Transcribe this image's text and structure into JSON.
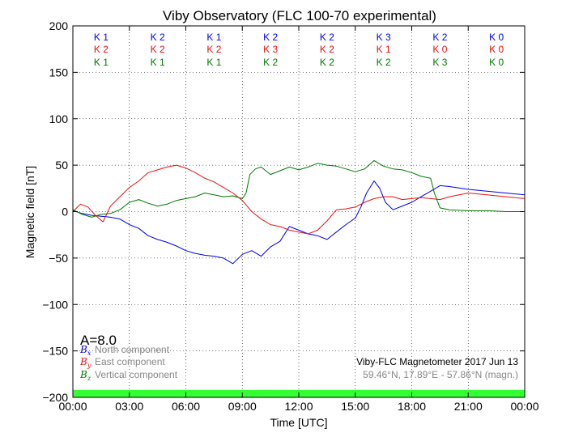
{
  "chart_data": {
    "type": "line",
    "title": "Viby Observatory (FLC 100-70 experimental)",
    "xlabel": "Time [UTC]",
    "ylabel": "Magnetic field [nT]",
    "xlim": [
      0,
      24
    ],
    "ylim": [
      -200,
      200
    ],
    "x_ticks": [
      0,
      3,
      6,
      9,
      12,
      15,
      18,
      21,
      24
    ],
    "x_tick_labels": [
      "00:00",
      "03:00",
      "06:00",
      "09:00",
      "12:00",
      "15:00",
      "18:00",
      "21:00",
      "00:00"
    ],
    "y_ticks": [
      200,
      150,
      100,
      50,
      0,
      -50,
      -100,
      -150,
      -200
    ],
    "y_tick_labels": [
      "200",
      "150",
      "100",
      "50",
      "0",
      "−50",
      "−100",
      "−150",
      "−200"
    ],
    "grid": true,
    "colors": {
      "north": "#0000ee",
      "east": "#ee1111",
      "vertical": "#007a00",
      "quiet_bar": "#33ff33"
    },
    "k_indices": {
      "x_centers": [
        1.5,
        4.5,
        7.5,
        10.5,
        13.5,
        16.5,
        19.5,
        22.5
      ],
      "north": [
        "K 1",
        "K 2",
        "K 1",
        "K 2",
        "K 2",
        "K 3",
        "K 2",
        "K 0"
      ],
      "east": [
        "K 2",
        "K 2",
        "K 2",
        "K 3",
        "K 2",
        "K 1",
        "K 0",
        "K 0"
      ],
      "vertical": [
        "K 1",
        "K 1",
        "K 1",
        "K 2",
        "K 2",
        "K 2",
        "K 3",
        "K 0"
      ]
    },
    "a_index": "A=8.0",
    "legend": {
      "placement": "lower-left",
      "items": [
        {
          "symbol": "B",
          "sub": "x",
          "label": "North component",
          "color": "#0000ee"
        },
        {
          "symbol": "B",
          "sub": "y",
          "label": "East component",
          "color": "#ee1111"
        },
        {
          "symbol": "B",
          "sub": "z",
          "label": "Vertical component",
          "color": "#007a00"
        }
      ]
    },
    "annotation": {
      "line1": "Viby-FLC Magnetometer 2017 Jun 13",
      "line2": "59.46°N, 17.89°E - 57.86°N (magn.)"
    },
    "series": [
      {
        "name": "North component",
        "color": "#0000ee",
        "x": [
          0,
          0.5,
          1,
          1.5,
          2,
          2.5,
          3,
          3.5,
          4,
          4.5,
          5,
          5.5,
          6,
          6.5,
          7,
          7.5,
          8,
          8.5,
          9,
          9.5,
          10,
          10.5,
          11,
          11.5,
          12,
          12.5,
          13,
          13.5,
          14,
          14.5,
          15,
          15.3,
          15.6,
          16,
          16.3,
          16.6,
          17,
          17.5,
          18,
          18.5,
          19,
          19.5,
          20,
          21,
          22,
          23,
          24
        ],
        "y": [
          1,
          -2,
          -4,
          -5,
          -6,
          -8,
          -14,
          -18,
          -26,
          -30,
          -33,
          -37,
          -42,
          -45,
          -47,
          -48,
          -50,
          -56,
          -46,
          -42,
          -48,
          -38,
          -32,
          -16,
          -20,
          -24,
          -26,
          -30,
          -22,
          -14,
          -7,
          5,
          20,
          33,
          25,
          10,
          2,
          6,
          10,
          16,
          22,
          28,
          27,
          24,
          22,
          20,
          18
        ]
      },
      {
        "name": "East component",
        "color": "#ee1111",
        "x": [
          0,
          0.4,
          0.8,
          1.2,
          1.6,
          2,
          2.5,
          3,
          3.5,
          4,
          4.5,
          5,
          5.5,
          6,
          6.5,
          7,
          7.5,
          8,
          8.5,
          9,
          9.5,
          10,
          10.5,
          11,
          11.5,
          12,
          12.5,
          13,
          13.5,
          14,
          14.5,
          15,
          15.5,
          16,
          16.5,
          17,
          17.5,
          18,
          18.5,
          19,
          19.5,
          20,
          21,
          22,
          23,
          24
        ],
        "y": [
          0,
          8,
          5,
          -4,
          -11,
          6,
          16,
          26,
          33,
          42,
          45,
          48,
          50,
          47,
          42,
          36,
          32,
          26,
          20,
          12,
          0,
          -8,
          -14,
          -16,
          -20,
          -22,
          -24,
          -20,
          -10,
          2,
          3,
          5,
          10,
          14,
          16,
          16,
          13,
          14,
          15,
          14,
          13,
          16,
          20,
          18,
          16,
          14
        ]
      },
      {
        "name": "Vertical component",
        "color": "#007a00",
        "x": [
          0,
          0.5,
          1,
          1.5,
          2,
          2.5,
          3,
          3.5,
          4,
          4.5,
          5,
          5.5,
          6,
          6.5,
          7,
          7.5,
          8,
          8.5,
          9,
          9.2,
          9.4,
          9.7,
          10,
          10.5,
          11,
          11.5,
          12,
          12.5,
          13,
          13.5,
          14,
          14.5,
          15,
          15.5,
          16,
          16.5,
          17,
          17.5,
          18,
          18.5,
          19,
          19.2,
          19.5,
          20,
          21,
          22,
          23,
          24
        ],
        "y": [
          2,
          -3,
          -6,
          -3,
          -2,
          2,
          10,
          13,
          9,
          6,
          8,
          12,
          14,
          16,
          20,
          18,
          16,
          17,
          14,
          20,
          40,
          46,
          48,
          40,
          44,
          48,
          45,
          48,
          52,
          50,
          49,
          46,
          43,
          46,
          55,
          49,
          46,
          45,
          42,
          38,
          36,
          20,
          4,
          2,
          1,
          1,
          0,
          0
        ]
      }
    ]
  }
}
